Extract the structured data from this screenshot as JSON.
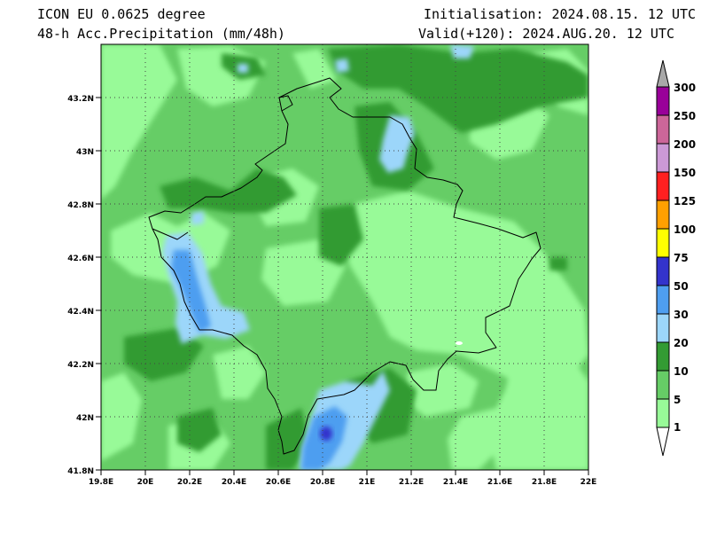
{
  "header": {
    "model": "ICON EU 0.0625 degree",
    "field": "48-h Acc.Precipitation (mm/48h)",
    "init": "Initialisation: 2024.08.15. 12 UTC",
    "valid": "Valid(+120): 2024.AUG.20. 12 UTC"
  },
  "map": {
    "lon_range": [
      19.8,
      22.0
    ],
    "lat_range": [
      41.8,
      43.4
    ],
    "x_ticks": [
      "19.8E",
      "20E",
      "20.2E",
      "20.4E",
      "20.6E",
      "20.8E",
      "21E",
      "21.2E",
      "21.4E",
      "21.6E",
      "21.8E",
      "22E"
    ],
    "y_ticks": [
      "43.2N",
      "43N",
      "42.8N",
      "42.6N",
      "42.4N",
      "42.2N",
      "42N",
      "41.8N"
    ],
    "grid": "dotted"
  },
  "colorbar": {
    "levels": [
      "1",
      "5",
      "10",
      "20",
      "30",
      "50",
      "75",
      "100",
      "125",
      "150",
      "200",
      "250",
      "300"
    ],
    "colors": [
      "#98fa98",
      "#66cd66",
      "#339b33",
      "#9cd6fa",
      "#4e9ef0",
      "#3333cc",
      "#ffff00",
      "#ffa000",
      "#ff2020",
      "#cc99d6",
      "#cc6699",
      "#990099",
      "#a8a8a8"
    ]
  }
}
